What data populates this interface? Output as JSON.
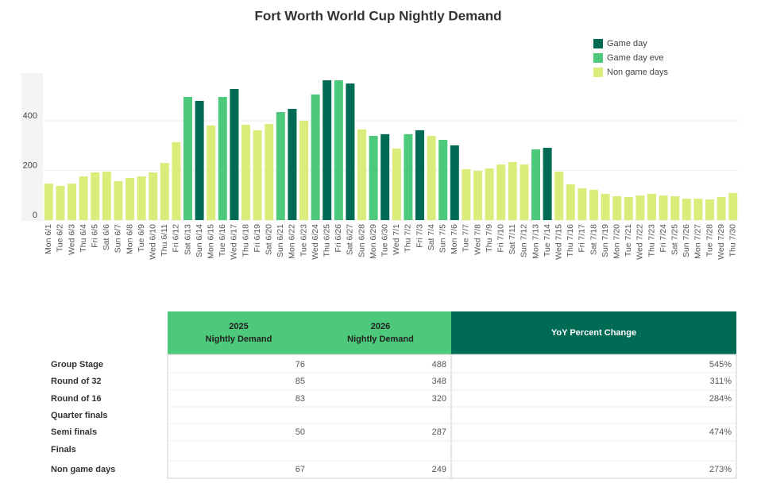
{
  "chart_data": {
    "type": "bar",
    "title": "Fort Worth World Cup Nightly Demand",
    "categories": [
      "Mon 6/1",
      "Tue 6/2",
      "Wed 6/3",
      "Thu 6/4",
      "Fri 6/5",
      "Sat 6/6",
      "Sun 6/7",
      "Mon 6/8",
      "Tue 6/9",
      "Wed 6/10",
      "Thu 6/11",
      "Fri 6/12",
      "Sat 6/13",
      "Sun 6/14",
      "Mon 6/15",
      "Tue 6/16",
      "Wed 6/17",
      "Thu 6/18",
      "Fri 6/19",
      "Sat 6/20",
      "Sun 6/21",
      "Mon 6/22",
      "Tue 6/23",
      "Wed 6/24",
      "Thu 6/25",
      "Fri 6/26",
      "Sat 6/27",
      "Sun 6/28",
      "Mon 6/29",
      "Tue 6/30",
      "Wed 7/1",
      "Thu 7/2",
      "Fri 7/3",
      "Sat 7/4",
      "Sun 7/5",
      "Mon 7/6",
      "Tue 7/7",
      "Wed 7/8",
      "Thu 7/9",
      "Fri 7/10",
      "Sat 7/11",
      "Sun 7/12",
      "Mon 7/13",
      "Tue 7/14",
      "Wed 7/15",
      "Thu 7/16",
      "Fri 7/17",
      "Sat 7/18",
      "Sun 7/19",
      "Mon 7/20",
      "Tue 7/21",
      "Wed 7/22",
      "Thu 7/23",
      "Fri 7/24",
      "Sat 7/25",
      "Sun 7/26",
      "Mon 7/27",
      "Tue 7/28",
      "Wed 7/29",
      "Thu 7/30"
    ],
    "series": [
      {
        "name": "Game day",
        "color": "#006b54",
        "values": [
          null,
          null,
          null,
          null,
          null,
          null,
          null,
          null,
          null,
          null,
          null,
          null,
          null,
          480,
          null,
          null,
          528,
          null,
          null,
          null,
          null,
          448,
          null,
          null,
          563,
          null,
          550,
          null,
          null,
          346,
          null,
          null,
          362,
          null,
          null,
          301,
          null,
          null,
          null,
          null,
          null,
          null,
          null,
          291,
          null,
          null,
          null,
          null,
          null,
          null,
          null,
          null,
          null,
          null,
          null,
          null,
          null,
          null,
          null,
          null
        ]
      },
      {
        "name": "Game day eve",
        "color": "#4cc97a",
        "values": [
          null,
          null,
          null,
          null,
          null,
          null,
          null,
          null,
          null,
          null,
          null,
          null,
          496,
          null,
          null,
          496,
          null,
          null,
          null,
          null,
          435,
          null,
          null,
          506,
          null,
          563,
          null,
          null,
          339,
          null,
          null,
          346,
          null,
          null,
          323,
          null,
          null,
          null,
          null,
          null,
          null,
          null,
          285,
          null,
          null,
          null,
          null,
          null,
          null,
          null,
          null,
          null,
          null,
          null,
          null,
          null,
          null,
          null,
          null,
          null
        ]
      },
      {
        "name": "Non game days",
        "color": "#dcec7a",
        "values": [
          147,
          138,
          147,
          176,
          192,
          195,
          157,
          170,
          176,
          192,
          230,
          314,
          null,
          null,
          381,
          null,
          null,
          384,
          362,
          387,
          null,
          null,
          400,
          null,
          null,
          null,
          null,
          365,
          null,
          null,
          288,
          null,
          null,
          339,
          null,
          null,
          205,
          198,
          208,
          224,
          234,
          224,
          null,
          null,
          195,
          144,
          128,
          122,
          106,
          96,
          93,
          99,
          106,
          99,
          96,
          86,
          86,
          83,
          93,
          109
        ]
      }
    ],
    "ylim": [
      0,
      592
    ],
    "yticks": [
      0,
      200,
      400
    ],
    "grid": true,
    "legend": "top-right"
  },
  "table": {
    "columns": [
      [
        "2025",
        "Nightly Demand"
      ],
      [
        "2026",
        "Nightly Demand"
      ],
      [
        "YoY Percent Change"
      ]
    ],
    "rows": [
      [
        "Group Stage",
        76,
        488,
        "545%"
      ],
      [
        "Round of 32",
        85,
        348,
        "311%"
      ],
      [
        "Round of 16",
        83,
        320,
        "284%"
      ],
      [
        "Quarter finals",
        null,
        null,
        null
      ],
      [
        "Semi finals",
        50,
        287,
        "474%"
      ],
      [
        "Finals",
        null,
        null,
        null
      ],
      [
        "Non game days",
        67,
        249,
        "273%"
      ]
    ]
  }
}
